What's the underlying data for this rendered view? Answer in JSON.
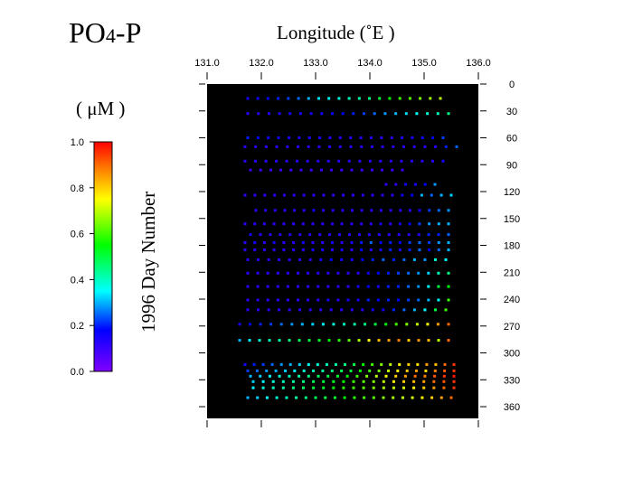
{
  "chart_data": {
    "type": "scatter",
    "title_main": "PO",
    "title_sub": "4",
    "title_tail": "-P",
    "xlabel": "Longitude  (˚E )",
    "ylabel": "1996  Day  Number",
    "colorbar_label": "( μM )",
    "xlim": [
      131.0,
      136.0
    ],
    "ylim": [
      0,
      365
    ],
    "x_ticks": [
      "131.0",
      "132.0",
      "133.0",
      "134.0",
      "135.0",
      "136.0"
    ],
    "y_ticks": [
      "0",
      "30",
      "60",
      "90",
      "120",
      "150",
      "180",
      "210",
      "240",
      "270",
      "300",
      "330",
      "360"
    ],
    "colorbar_range": [
      0.0,
      1.0
    ],
    "colorbar_ticks": [
      "1.0",
      "0.8",
      "0.6",
      "0.4",
      "0.2",
      "0.0"
    ],
    "plot_background": "#000000",
    "cruises": [
      {
        "day": 16,
        "lon_start": 131.75,
        "lon_end": 135.3,
        "values": [
          0.15,
          0.16,
          0.18,
          0.2,
          0.22,
          0.25,
          0.3,
          0.33,
          0.35,
          0.38,
          0.4,
          0.42,
          0.45,
          0.5,
          0.55,
          0.6,
          0.62,
          0.65,
          0.68,
          0.7
        ]
      },
      {
        "day": 33,
        "lon_start": 131.75,
        "lon_end": 135.45,
        "values": [
          0.12,
          0.12,
          0.13,
          0.14,
          0.15,
          0.15,
          0.15,
          0.16,
          0.17,
          0.18,
          0.2,
          0.22,
          0.25,
          0.28,
          0.3,
          0.33,
          0.35,
          0.38,
          0.4,
          0.45
        ]
      },
      {
        "day": 60,
        "lon_start": 131.75,
        "lon_end": 135.35,
        "values": [
          0.2,
          0.18,
          0.16,
          0.15,
          0.15,
          0.14,
          0.14,
          0.14,
          0.13,
          0.13,
          0.13,
          0.13,
          0.13,
          0.12,
          0.12,
          0.14,
          0.15,
          0.16,
          0.18,
          0.22
        ]
      },
      {
        "day": 70,
        "lon_start": 131.7,
        "lon_end": 135.6,
        "values": [
          0.12,
          0.12,
          0.12,
          0.12,
          0.12,
          0.12,
          0.12,
          0.12,
          0.12,
          0.12,
          0.12,
          0.12,
          0.12,
          0.12,
          0.12,
          0.12,
          0.12,
          0.12,
          0.13,
          0.2,
          0.25
        ]
      },
      {
        "day": 86,
        "lon_start": 131.7,
        "lon_end": 135.35,
        "values": [
          0.12,
          0.12,
          0.12,
          0.12,
          0.12,
          0.12,
          0.12,
          0.12,
          0.12,
          0.12,
          0.12,
          0.12,
          0.12,
          0.12,
          0.12,
          0.12,
          0.12,
          0.12,
          0.13,
          0.15
        ]
      },
      {
        "day": 96,
        "lon_start": 131.8,
        "lon_end": 134.6,
        "values": [
          0.1,
          0.1,
          0.1,
          0.1,
          0.1,
          0.1,
          0.1,
          0.1,
          0.1,
          0.1,
          0.1,
          0.1,
          0.1,
          0.1,
          0.1,
          0.1
        ]
      },
      {
        "day": 112,
        "lon_start": 134.3,
        "lon_end": 135.2,
        "values": [
          0.12,
          0.12,
          0.15,
          0.15,
          0.18,
          0.28
        ]
      },
      {
        "day": 124,
        "lon_start": 131.7,
        "lon_end": 135.5,
        "values": [
          0.12,
          0.12,
          0.12,
          0.12,
          0.12,
          0.12,
          0.12,
          0.12,
          0.12,
          0.12,
          0.12,
          0.12,
          0.12,
          0.12,
          0.12,
          0.12,
          0.15,
          0.18,
          0.3,
          0.25,
          0.3,
          0.32
        ]
      },
      {
        "day": 141,
        "lon_start": 131.9,
        "lon_end": 135.45,
        "values": [
          0.12,
          0.12,
          0.12,
          0.12,
          0.12,
          0.12,
          0.15,
          0.12,
          0.12,
          0.12,
          0.12,
          0.12,
          0.12,
          0.12,
          0.12,
          0.12,
          0.12,
          0.15,
          0.22,
          0.25,
          0.28
        ]
      },
      {
        "day": 156,
        "lon_start": 131.7,
        "lon_end": 135.45,
        "values": [
          0.12,
          0.12,
          0.12,
          0.12,
          0.12,
          0.12,
          0.12,
          0.12,
          0.12,
          0.12,
          0.12,
          0.12,
          0.12,
          0.12,
          0.15,
          0.12,
          0.15,
          0.18,
          0.22,
          0.28,
          0.3,
          0.3
        ]
      },
      {
        "day": 168,
        "lon_start": 131.8,
        "lon_end": 135.45,
        "values": [
          0.15,
          0.13,
          0.13,
          0.13,
          0.13,
          0.13,
          0.13,
          0.13,
          0.13,
          0.13,
          0.13,
          0.13,
          0.13,
          0.13,
          0.13,
          0.13,
          0.13,
          0.13,
          0.2,
          0.2,
          0.25
        ]
      },
      {
        "day": 177,
        "lon_start": 131.7,
        "lon_end": 135.45,
        "values": [
          0.12,
          0.15,
          0.12,
          0.15,
          0.12,
          0.12,
          0.15,
          0.12,
          0.12,
          0.15,
          0.12,
          0.15,
          0.2,
          0.25,
          0.18,
          0.2,
          0.18,
          0.22,
          0.25,
          0.22,
          0.28,
          0.3
        ]
      },
      {
        "day": 185,
        "lon_start": 131.7,
        "lon_end": 135.45,
        "values": [
          0.12,
          0.12,
          0.12,
          0.12,
          0.12,
          0.12,
          0.12,
          0.15,
          0.15,
          0.12,
          0.15,
          0.12,
          0.18,
          0.12,
          0.15,
          0.2,
          0.15,
          0.2,
          0.25,
          0.18,
          0.25,
          0.3
        ]
      },
      {
        "day": 196,
        "lon_start": 131.75,
        "lon_end": 135.4,
        "values": [
          0.12,
          0.12,
          0.12,
          0.12,
          0.12,
          0.12,
          0.12,
          0.15,
          0.18,
          0.15,
          0.15,
          0.18,
          0.2,
          0.25,
          0.2,
          0.25,
          0.3,
          0.28,
          0.38,
          0.35
        ]
      },
      {
        "day": 211,
        "lon_start": 131.75,
        "lon_end": 135.45,
        "values": [
          0.12,
          0.12,
          0.12,
          0.12,
          0.12,
          0.12,
          0.12,
          0.12,
          0.12,
          0.12,
          0.12,
          0.12,
          0.15,
          0.18,
          0.2,
          0.22,
          0.25,
          0.28,
          0.32,
          0.4,
          0.45
        ]
      },
      {
        "day": 226,
        "lon_start": 131.75,
        "lon_end": 135.45,
        "values": [
          0.12,
          0.12,
          0.12,
          0.12,
          0.12,
          0.12,
          0.12,
          0.12,
          0.12,
          0.12,
          0.12,
          0.15,
          0.18,
          0.15,
          0.2,
          0.2,
          0.25,
          0.28,
          0.35,
          0.5,
          0.55
        ]
      },
      {
        "day": 241,
        "lon_start": 131.75,
        "lon_end": 135.45,
        "values": [
          0.12,
          0.12,
          0.12,
          0.12,
          0.12,
          0.12,
          0.12,
          0.12,
          0.15,
          0.12,
          0.15,
          0.15,
          0.2,
          0.18,
          0.2,
          0.18,
          0.22,
          0.25,
          0.3,
          0.35,
          0.6
        ]
      },
      {
        "day": 252,
        "lon_start": 131.75,
        "lon_end": 135.4,
        "values": [
          0.12,
          0.12,
          0.12,
          0.12,
          0.12,
          0.12,
          0.12,
          0.12,
          0.12,
          0.12,
          0.12,
          0.12,
          0.15,
          0.15,
          0.2,
          0.25,
          0.3,
          0.35,
          0.5,
          0.6
        ]
      },
      {
        "day": 268,
        "lon_start": 131.6,
        "lon_end": 135.45,
        "values": [
          0.15,
          0.18,
          0.2,
          0.22,
          0.25,
          0.28,
          0.3,
          0.32,
          0.35,
          0.38,
          0.4,
          0.42,
          0.45,
          0.5,
          0.55,
          0.6,
          0.65,
          0.7,
          0.75,
          0.85,
          0.9
        ]
      },
      {
        "day": 286,
        "lon_start": 131.6,
        "lon_end": 135.45,
        "values": [
          0.3,
          0.35,
          0.38,
          0.4,
          0.42,
          0.45,
          0.48,
          0.5,
          0.52,
          0.55,
          0.58,
          0.62,
          0.68,
          0.75,
          0.82,
          0.85,
          0.88,
          0.8,
          0.85,
          0.82,
          0.7,
          0.9
        ]
      },
      {
        "day": 313,
        "lon_start": 131.7,
        "lon_end": 135.55,
        "values": [
          0.15,
          0.2,
          0.22,
          0.25,
          0.28,
          0.3,
          0.32,
          0.35,
          0.38,
          0.4,
          0.42,
          0.45,
          0.5,
          0.55,
          0.6,
          0.65,
          0.7,
          0.75,
          0.8,
          0.78,
          0.85,
          0.82,
          0.9,
          0.95
        ]
      },
      {
        "day": 320,
        "lon_start": 131.75,
        "lon_end": 135.55,
        "values": [
          0.22,
          0.25,
          0.28,
          0.3,
          0.32,
          0.35,
          0.38,
          0.4,
          0.42,
          0.45,
          0.48,
          0.5,
          0.55,
          0.6,
          0.65,
          0.7,
          0.75,
          0.8,
          0.85,
          0.78,
          0.88,
          0.92,
          0.95
        ]
      },
      {
        "day": 326,
        "lon_start": 131.8,
        "lon_end": 135.55,
        "values": [
          0.3,
          0.32,
          0.35,
          0.38,
          0.4,
          0.42,
          0.45,
          0.48,
          0.5,
          0.52,
          0.55,
          0.6,
          0.65,
          0.7,
          0.75,
          0.8,
          0.85,
          0.9,
          0.88,
          0.92,
          0.95,
          0.98
        ]
      },
      {
        "day": 332,
        "lon_start": 131.85,
        "lon_end": 135.55,
        "values": [
          0.32,
          0.35,
          0.38,
          0.4,
          0.42,
          0.45,
          0.48,
          0.5,
          0.52,
          0.55,
          0.6,
          0.62,
          0.65,
          0.7,
          0.75,
          0.8,
          0.82,
          0.85,
          0.9,
          0.92,
          0.95
        ]
      },
      {
        "day": 339,
        "lon_start": 131.85,
        "lon_end": 135.55,
        "values": [
          0.35,
          0.38,
          0.4,
          0.42,
          0.45,
          0.48,
          0.5,
          0.52,
          0.55,
          0.58,
          0.6,
          0.62,
          0.65,
          0.68,
          0.7,
          0.72,
          0.75,
          0.8,
          0.85,
          0.9,
          0.95
        ]
      },
      {
        "day": 350,
        "lon_start": 131.75,
        "lon_end": 135.5,
        "values": [
          0.3,
          0.32,
          0.35,
          0.38,
          0.4,
          0.42,
          0.45,
          0.48,
          0.5,
          0.52,
          0.55,
          0.58,
          0.6,
          0.62,
          0.65,
          0.68,
          0.7,
          0.72,
          0.75,
          0.8,
          0.85,
          0.9
        ]
      }
    ]
  }
}
